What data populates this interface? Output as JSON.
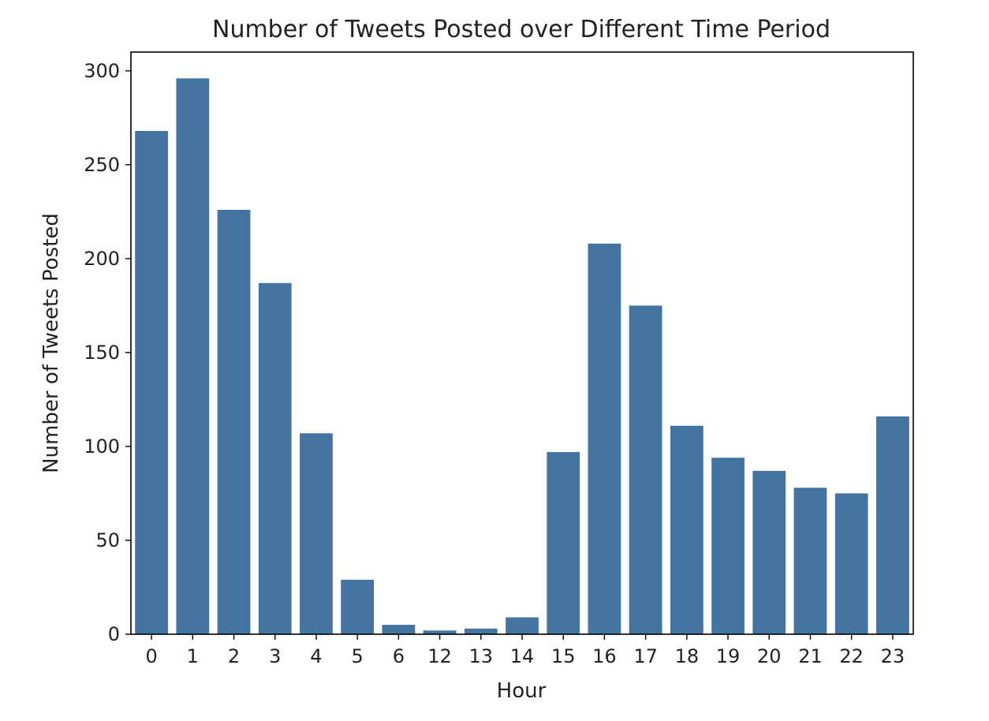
{
  "chart_data": {
    "type": "bar",
    "title": "Number of Tweets Posted over Different Time Period",
    "xlabel": "Hour",
    "ylabel": "Number of Tweets Posted",
    "categories": [
      "0",
      "1",
      "2",
      "3",
      "4",
      "5",
      "6",
      "12",
      "13",
      "14",
      "15",
      "16",
      "17",
      "18",
      "19",
      "20",
      "21",
      "22",
      "23"
    ],
    "values": [
      268,
      296,
      226,
      187,
      107,
      29,
      5,
      2,
      3,
      9,
      97,
      208,
      175,
      111,
      94,
      87,
      78,
      75,
      116
    ],
    "ylim": [
      0,
      310
    ],
    "yticks": [
      0,
      50,
      100,
      150,
      200,
      250,
      300
    ],
    "bar_color": "#4373a0",
    "grid": false,
    "legend": false
  }
}
